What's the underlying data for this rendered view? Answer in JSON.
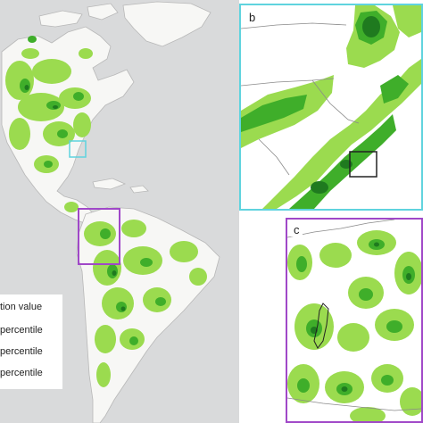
{
  "panel_a": {
    "land_color": "#f7f7f5",
    "ocean_color": "#d9dadb",
    "highlight_colors": {
      "light": "#9bdb4f",
      "mid": "#3fae2a",
      "dark": "#1f7a1f"
    },
    "inset_b_box_color": "#5fd3de",
    "inset_c_box_color": "#a048c8"
  },
  "panel_b": {
    "label": "b",
    "frame_color": "#5fd3de"
  },
  "panel_c": {
    "label": "c",
    "frame_color": "#a048c8"
  },
  "legend": {
    "title": "tion value",
    "items": [
      {
        "label": "percentile",
        "color": "#9bdb4f"
      },
      {
        "label": "percentile",
        "color": "#3fae2a"
      },
      {
        "label": "percentile",
        "color": "#1f7a1f"
      }
    ]
  }
}
